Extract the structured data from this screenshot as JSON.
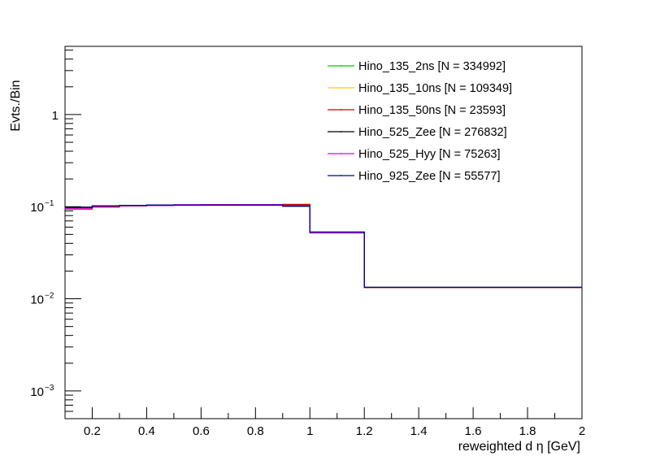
{
  "chart_data": {
    "type": "line",
    "title": "",
    "xlabel": "reweighted d η [GeV]",
    "ylabel": "Evts./Bin",
    "xlim": [
      0.1,
      2.0
    ],
    "ylim": [
      0.0005,
      5.5
    ],
    "ylog": true,
    "grid": false,
    "legend_position": "top-right",
    "x_ticks": [
      {
        "v": 0.2,
        "label": "0.2"
      },
      {
        "v": 0.4,
        "label": "0.4"
      },
      {
        "v": 0.6,
        "label": "0.6"
      },
      {
        "v": 0.8,
        "label": "0.8"
      },
      {
        "v": 1.0,
        "label": "1"
      },
      {
        "v": 1.2,
        "label": "1.2"
      },
      {
        "v": 1.4,
        "label": "1.4"
      },
      {
        "v": 1.6,
        "label": "1.6"
      },
      {
        "v": 1.8,
        "label": "1.8"
      },
      {
        "v": 2.0,
        "label": "2"
      }
    ],
    "y_ticks": [
      {
        "v": 0.001,
        "mant": "10",
        "exp": "−3"
      },
      {
        "v": 0.01,
        "mant": "10",
        "exp": "−2"
      },
      {
        "v": 0.1,
        "mant": "10",
        "exp": "−1"
      },
      {
        "v": 1,
        "mant": "1",
        "exp": ""
      }
    ],
    "bin_edges": [
      0.1,
      0.2,
      0.3,
      0.4,
      0.5,
      0.6,
      0.7,
      0.8,
      0.9,
      1.0,
      1.2,
      2.0
    ],
    "series": [
      {
        "name": "Hino_135_2ns [N = 334992]",
        "color": "#00cc00",
        "values": [
          0.097,
          0.101,
          0.102,
          0.103,
          0.104,
          0.104,
          0.104,
          0.104,
          0.102,
          0.053,
          0.0133
        ]
      },
      {
        "name": "Hino_135_10ns [N = 109349]",
        "color": "#ffcc00",
        "values": [
          0.096,
          0.1,
          0.102,
          0.103,
          0.104,
          0.105,
          0.104,
          0.104,
          0.103,
          0.052,
          0.0132
        ]
      },
      {
        "name": "Hino_135_50ns [N = 23593]",
        "color": "#cc0000",
        "values": [
          0.094,
          0.099,
          0.102,
          0.103,
          0.104,
          0.105,
          0.105,
          0.105,
          0.106,
          0.052,
          0.0133
        ]
      },
      {
        "name": "Hino_525_Zee [N = 276832]",
        "color": "#000000",
        "values": [
          0.099,
          0.102,
          0.103,
          0.104,
          0.104,
          0.104,
          0.104,
          0.104,
          0.101,
          0.053,
          0.0133
        ]
      },
      {
        "name": "Hino_525_Hyy [N = 75263]",
        "color": "#e000e0",
        "values": [
          0.095,
          0.101,
          0.102,
          0.103,
          0.105,
          0.105,
          0.105,
          0.105,
          0.103,
          0.052,
          0.0133
        ]
      },
      {
        "name": "Hino_925_Zee [N = 55577]",
        "color": "#000099",
        "values": [
          0.098,
          0.102,
          0.103,
          0.104,
          0.104,
          0.104,
          0.104,
          0.104,
          0.102,
          0.053,
          0.0133
        ]
      }
    ]
  }
}
